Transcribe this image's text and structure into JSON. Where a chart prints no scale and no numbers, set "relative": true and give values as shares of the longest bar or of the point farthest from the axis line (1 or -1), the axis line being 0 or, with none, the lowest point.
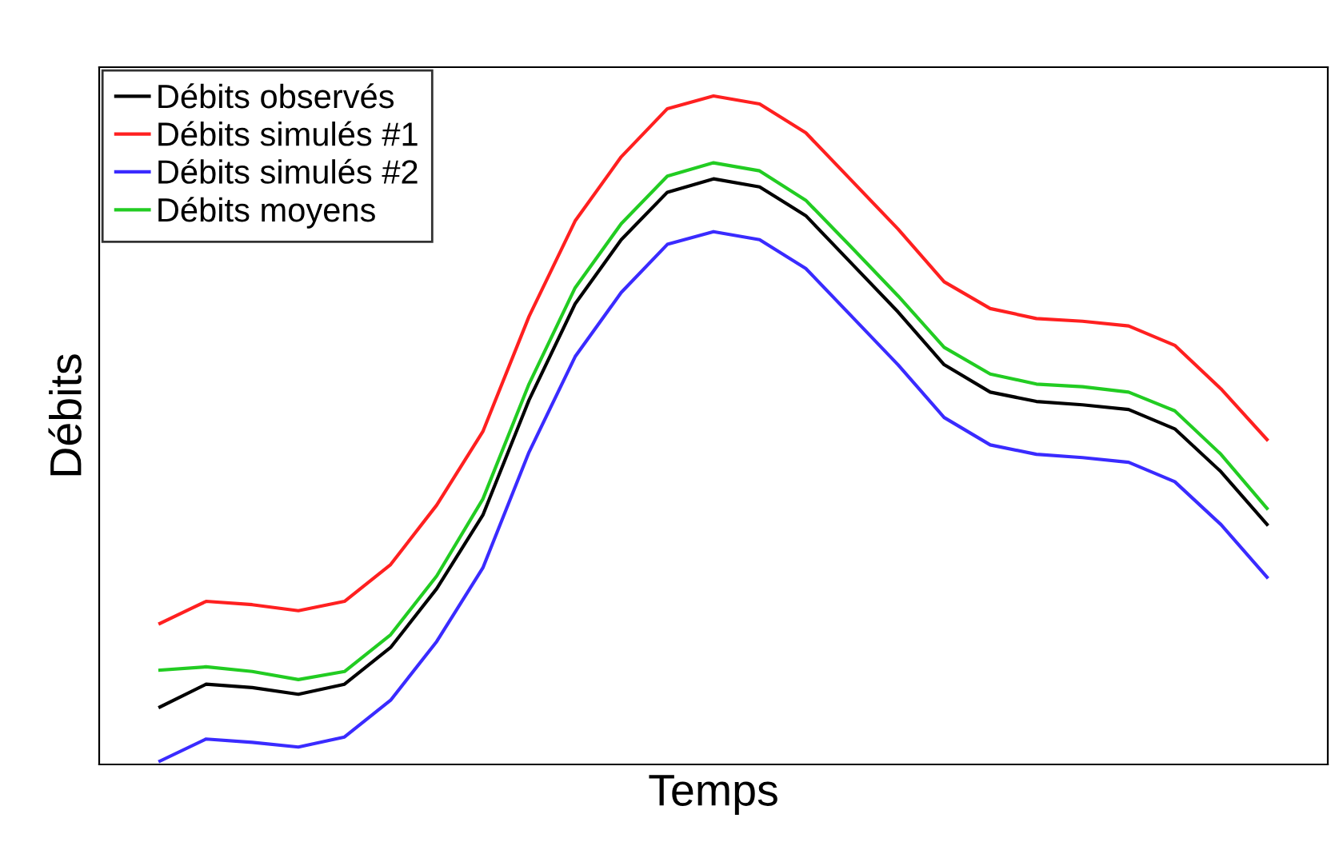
{
  "chart_data": {
    "type": "line",
    "relative": true,
    "xlabel": "Temps",
    "ylabel": "Débits",
    "legend": "top left",
    "categories": [
      null,
      null,
      null,
      null,
      null,
      null,
      null,
      null,
      null,
      null,
      null,
      null,
      null,
      null,
      null,
      null,
      null,
      null,
      null,
      null,
      null,
      null,
      null,
      null,
      null
    ],
    "series": [
      {
        "name": "Débits observés",
        "color": "#000000",
        "values": [
          0.086,
          0.12,
          0.115,
          0.105,
          0.12,
          0.175,
          0.263,
          0.373,
          0.545,
          0.689,
          0.785,
          0.856,
          0.876,
          0.864,
          0.821,
          0.749,
          0.677,
          0.598,
          0.557,
          0.543,
          0.538,
          0.531,
          0.502,
          0.438,
          0.359
        ]
      },
      {
        "name": "Débits simulés #1",
        "color": "#ff2020",
        "values": [
          0.211,
          0.244,
          0.239,
          0.23,
          0.244,
          0.299,
          0.388,
          0.498,
          0.67,
          0.813,
          0.909,
          0.981,
          1,
          0.988,
          0.945,
          0.873,
          0.801,
          0.722,
          0.682,
          0.667,
          0.663,
          0.656,
          0.627,
          0.562,
          0.486
        ]
      },
      {
        "name": "Débits simulés #2",
        "color": "#3a2bff",
        "values": [
          0.005,
          0.038,
          0.033,
          0.026,
          0.041,
          0.096,
          0.184,
          0.294,
          0.467,
          0.61,
          0.706,
          0.778,
          0.797,
          0.785,
          0.742,
          0.67,
          0.598,
          0.519,
          0.478,
          0.464,
          0.459,
          0.452,
          0.423,
          0.359,
          0.28
        ]
      },
      {
        "name": "Débits moyens",
        "color": "#22cc22",
        "values": [
          0.141,
          0.146,
          0.139,
          0.127,
          0.139,
          0.194,
          0.282,
          0.397,
          0.569,
          0.713,
          0.809,
          0.88,
          0.9,
          0.888,
          0.844,
          0.773,
          0.701,
          0.624,
          0.584,
          0.569,
          0.565,
          0.557,
          0.529,
          0.464,
          0.383
        ]
      }
    ]
  }
}
